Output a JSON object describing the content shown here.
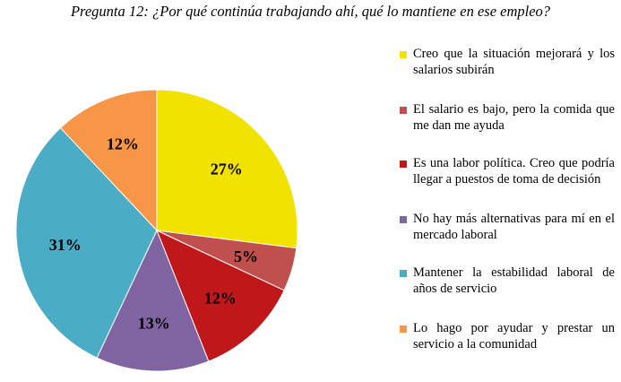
{
  "title": "Pregunta 12: ¿Por qué continúa trabajando ahí, qué lo mantiene en ese empleo?",
  "chart_data": {
    "type": "pie",
    "title": "Pregunta 12: ¿Por qué continúa trabajando ahí, qué lo mantiene en ese empleo?",
    "slices": [
      {
        "label": "Creo que la situación mejorará y los salarios subirán",
        "value": 27,
        "display": "27%",
        "color": "#F2E200"
      },
      {
        "label": "El salario es bajo, pero la comida que me dan me ayuda",
        "value": 5,
        "display": "5%",
        "color": "#C0504D"
      },
      {
        "label": "Es una labor política. Creo que podría llegar a puestos de toma de decisión",
        "value": 12,
        "display": "12%",
        "color": "#C0171A"
      },
      {
        "label": "No hay más alternativas para mí en el mercado laboral",
        "value": 13,
        "display": "13%",
        "color": "#8064A2"
      },
      {
        "label": "Mantener la estabilidad laboral de años de servicio",
        "value": 31,
        "display": "31%",
        "color": "#4BACC6"
      },
      {
        "label": "Lo hago por ayudar y prestar un servicio a la comunidad",
        "value": 12,
        "display": "12%",
        "color": "#F79646"
      }
    ],
    "legend_position": "right"
  }
}
